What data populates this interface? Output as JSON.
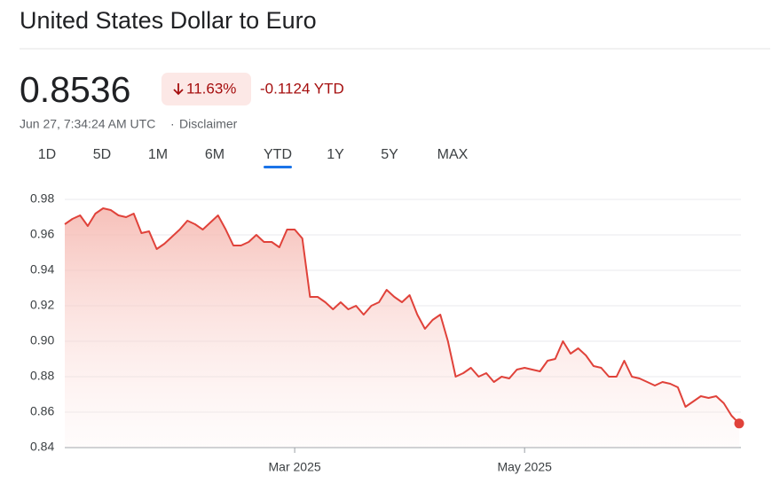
{
  "header": {
    "title": "United States Dollar to Euro",
    "price": "0.8536",
    "change_percent": "11.63%",
    "change": "-0.1124 YTD",
    "timestamp": "Jun 27, 7:34:24 AM UTC",
    "separator": "·",
    "disclaimer": "Disclaimer"
  },
  "tabs": {
    "items": [
      "1D",
      "5D",
      "1M",
      "6M",
      "YTD",
      "1Y",
      "5Y",
      "MAX"
    ],
    "active": "YTD"
  },
  "chart_data": {
    "type": "line",
    "color": "#e0423a",
    "grid": true,
    "categories": [
      null,
      null,
      null,
      null,
      null,
      null,
      null,
      null,
      null,
      null,
      null,
      null,
      null,
      null,
      null,
      null,
      null,
      null,
      null,
      null,
      null,
      null,
      null,
      null,
      null,
      null,
      null,
      null,
      null,
      null,
      "Mar 2025",
      null,
      null,
      null,
      null,
      null,
      null,
      null,
      null,
      null,
      null,
      null,
      null,
      null,
      null,
      null,
      null,
      null,
      null,
      null,
      null,
      null,
      null,
      null,
      null,
      null,
      null,
      null,
      null,
      null,
      "May 2025",
      null,
      null,
      null,
      null,
      null,
      null,
      null,
      null,
      null,
      null,
      null,
      null,
      null,
      null,
      null,
      null,
      null,
      null,
      null,
      null,
      null,
      null,
      null,
      null,
      null,
      null,
      null,
      null
    ],
    "values": [
      0.966,
      0.969,
      0.971,
      0.965,
      0.972,
      0.975,
      0.974,
      0.971,
      0.97,
      0.972,
      0.961,
      0.962,
      0.952,
      0.955,
      0.959,
      0.963,
      0.968,
      0.966,
      0.963,
      0.967,
      0.971,
      0.963,
      0.954,
      0.954,
      0.956,
      0.96,
      0.956,
      0.956,
      0.953,
      0.963,
      0.963,
      0.958,
      0.925,
      0.925,
      0.922,
      0.918,
      0.922,
      0.918,
      0.92,
      0.915,
      0.92,
      0.922,
      0.929,
      0.925,
      0.922,
      0.926,
      0.915,
      0.907,
      0.912,
      0.915,
      0.9,
      0.88,
      0.882,
      0.885,
      0.88,
      0.882,
      0.877,
      0.88,
      0.879,
      0.884,
      0.885,
      0.884,
      0.883,
      0.889,
      0.89,
      0.9,
      0.893,
      0.896,
      0.892,
      0.886,
      0.885,
      0.88,
      0.88,
      0.889,
      0.88,
      0.879,
      0.877,
      0.875,
      0.877,
      0.876,
      0.874,
      0.863,
      0.866,
      0.869,
      0.868,
      0.869,
      0.865,
      0.858,
      0.8536
    ],
    "ylim": [
      0.84,
      0.98
    ],
    "yticks": [
      0.84,
      0.86,
      0.88,
      {
        "value": 0.9,
        "label": "0.90"
      },
      0.92,
      0.94,
      0.96,
      0.98
    ]
  }
}
